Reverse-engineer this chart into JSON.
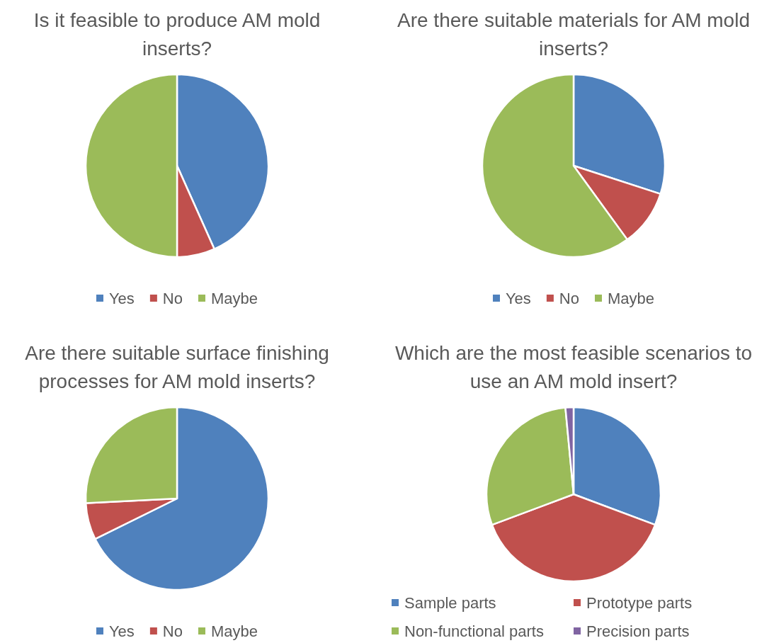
{
  "chart_data": [
    {
      "type": "pie",
      "title": "Is it feasible to produce AM mold inserts?",
      "categories": [
        "Yes",
        "No",
        "Maybe"
      ],
      "values": [
        43.3,
        6.7,
        50
      ],
      "colors": [
        "#4f81bd",
        "#c0504d",
        "#9bbb59"
      ],
      "legend": "bottom"
    },
    {
      "type": "pie",
      "title": "Are there suitable materials for AM mold inserts?",
      "categories": [
        "Yes",
        "No",
        "Maybe"
      ],
      "values": [
        30,
        10,
        60
      ],
      "colors": [
        "#4f81bd",
        "#c0504d",
        "#9bbb59"
      ],
      "legend": "bottom"
    },
    {
      "type": "pie",
      "title": "Are there suitable surface finishing processes for AM mold inserts?",
      "categories": [
        "Yes",
        "No",
        "Maybe"
      ],
      "values": [
        67.7,
        6.5,
        25.8
      ],
      "colors": [
        "#4f81bd",
        "#c0504d",
        "#9bbb59"
      ],
      "legend": "bottom"
    },
    {
      "type": "pie",
      "title": "Which are the most feasible scenarios to use an AM mold insert?",
      "categories": [
        "Sample parts",
        "Prototype parts",
        "Non-functional parts",
        "Precision parts"
      ],
      "values": [
        30.7,
        38.6,
        29.2,
        1.5
      ],
      "colors": [
        "#4f81bd",
        "#c0504d",
        "#9bbb59",
        "#8064a2"
      ],
      "legend": "bottom"
    }
  ]
}
